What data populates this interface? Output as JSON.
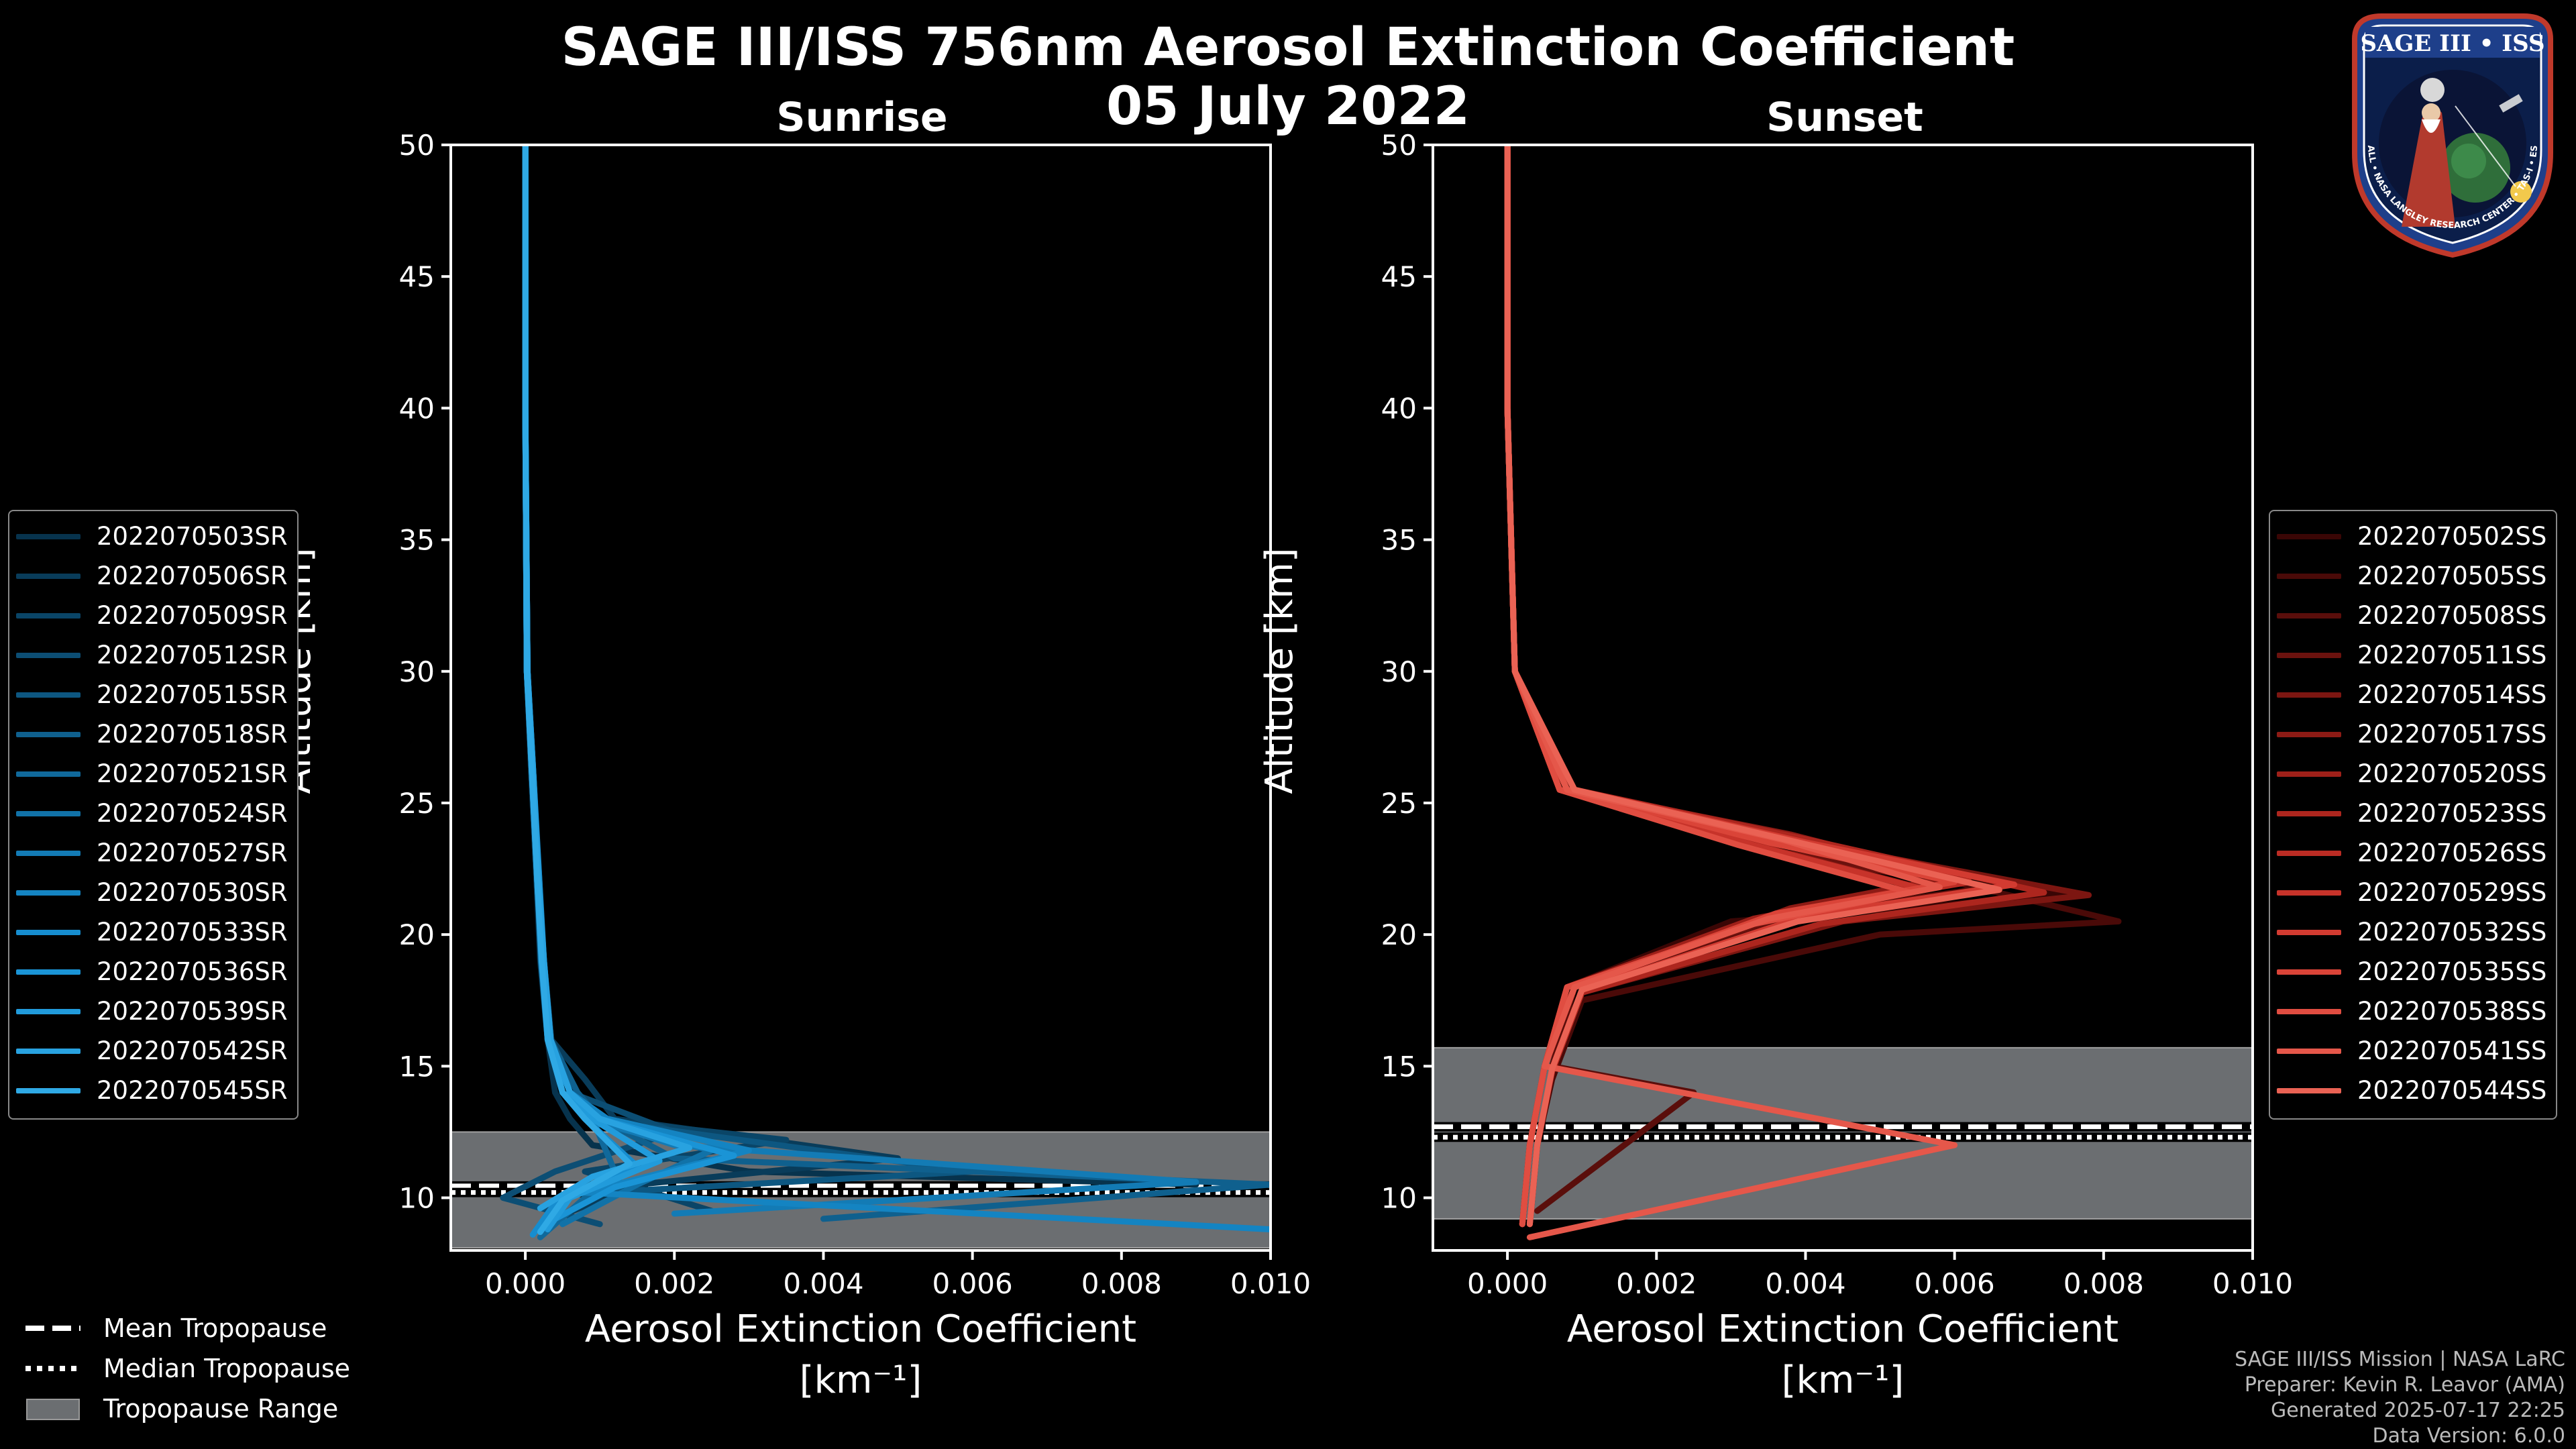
{
  "title_line1": "SAGE III/ISS 756nm Aerosol Extinction Coefficient",
  "title_line2": "05 July 2022",
  "logo_text": "SAGE III • ISS",
  "logo_ring_text": "BALL • NASA LANGLEY RESEARCH CENTER • TAS-I • ESA",
  "credits": {
    "line1": "SAGE III/ISS Mission | NASA LaRC",
    "line2": "Preparer: Kevin R. Leavor (AMA)",
    "line3": "Generated 2025-07-17 22:25",
    "line4": "Data Version: 6.0.0"
  },
  "trop_legend": {
    "mean": "Mean Tropopause",
    "median": "Median Tropopause",
    "range": "Tropopause Range"
  },
  "chart_data": [
    {
      "type": "line",
      "title": "Sunrise",
      "xlabel": "Aerosol Extinction Coefficient",
      "xlabel_units": "[km⁻¹]",
      "ylabel": "Altitude [km]",
      "xlim": [
        -0.001,
        0.01
      ],
      "ylim": [
        8,
        50
      ],
      "xticks": [
        0.0,
        0.002,
        0.004,
        0.006,
        0.008,
        0.01
      ],
      "xtick_labels": [
        "0.000",
        "0.002",
        "0.004",
        "0.006",
        "0.008",
        "0.010"
      ],
      "yticks": [
        10,
        15,
        20,
        25,
        30,
        35,
        40,
        45,
        50
      ],
      "tropopause": {
        "mean": 10.45,
        "median": 10.2,
        "range": [
          8.1,
          12.5
        ]
      },
      "series": [
        {
          "name": "2022070503SR",
          "color": "#07334d",
          "x": [
            0.0,
            0.0,
            2e-05,
            8e-05,
            0.00015,
            0.0002,
            0.0003,
            0.0004,
            0.0006,
            0.0009,
            0.003,
            0.009
          ],
          "y": [
            50,
            40,
            30,
            26,
            22,
            19,
            16,
            14,
            13,
            12,
            11,
            10.5
          ]
        },
        {
          "name": "2022070506SR",
          "color": "#093c5a",
          "x": [
            0.0,
            0.0,
            3e-05,
            0.0001,
            0.00018,
            0.00025,
            0.00035,
            0.0008,
            0.0012,
            0.005,
            0.0015,
            0.0002
          ],
          "y": [
            50,
            40,
            30,
            26,
            22,
            19,
            16,
            14.5,
            13,
            11.5,
            10.5,
            9
          ]
        },
        {
          "name": "2022070509SR",
          "color": "#0a4567",
          "x": [
            0.0,
            0.0,
            2e-05,
            9e-05,
            0.00016,
            0.00022,
            0.0003,
            0.0005,
            0.0009,
            0.0035,
            0.0008,
            0.0025
          ],
          "y": [
            50,
            40,
            30,
            26,
            22,
            19,
            16,
            14,
            13,
            12.2,
            11,
            9.5
          ]
        },
        {
          "name": "2022070512SR",
          "color": "#0c4e74",
          "x": [
            0.0,
            0.0,
            3e-05,
            0.0001,
            0.00019,
            0.00024,
            0.00033,
            0.0006,
            0.002,
            0.0004,
            -0.0003,
            0.001
          ],
          "y": [
            50,
            40,
            30,
            26,
            22,
            19,
            16,
            14,
            12.5,
            11,
            10,
            9
          ]
        },
        {
          "name": "2022070515SR",
          "color": "#0d5781",
          "x": [
            0.0,
            0.0,
            2e-05,
            0.0001,
            0.00017,
            0.00023,
            0.00031,
            0.0005,
            0.0008,
            0.006,
            0.001,
            0.0003
          ],
          "y": [
            50,
            40,
            30,
            26,
            22,
            19,
            16,
            14,
            13,
            11,
            10.2,
            9
          ]
        },
        {
          "name": "2022070518SR",
          "color": "#0f608e",
          "x": [
            0.0,
            0.0,
            3e-05,
            0.00011,
            0.00018,
            0.00025,
            0.00034,
            0.0007,
            0.001,
            0.002,
            0.01,
            0.004
          ],
          "y": [
            50,
            40,
            30,
            26,
            22,
            19,
            16,
            14,
            13,
            11.5,
            10.5,
            9.2
          ]
        },
        {
          "name": "2022070521SR",
          "color": "#10699b",
          "x": [
            0.0,
            0.0,
            2e-05,
            9e-05,
            0.00016,
            0.00021,
            0.0003,
            0.0005,
            0.0009,
            0.0012,
            0.0006,
            0.0002
          ],
          "y": [
            50,
            40,
            30,
            26,
            22,
            19,
            16,
            14,
            13,
            11,
            9.5,
            8.5
          ]
        },
        {
          "name": "2022070524SR",
          "color": "#1172a8",
          "x": [
            0.0,
            0.0,
            3e-05,
            0.0001,
            0.00018,
            0.00024,
            0.00033,
            0.0006,
            0.001,
            0.0025,
            0.0015,
            0.0005
          ],
          "y": [
            50,
            40,
            30,
            26,
            22,
            19,
            16,
            14,
            12.8,
            11.8,
            10.5,
            9
          ]
        },
        {
          "name": "2022070527SR",
          "color": "#137bb5",
          "x": [
            0.0,
            0.0,
            2e-05,
            0.0001,
            0.00017,
            0.00023,
            0.00032,
            0.0005,
            0.0009,
            0.002,
            0.009,
            0.002
          ],
          "y": [
            50,
            40,
            30,
            26,
            22,
            19,
            16,
            14,
            13,
            12,
            10.6,
            9.4
          ]
        },
        {
          "name": "2022070530SR",
          "color": "#1484c2",
          "x": [
            0.0,
            0.0,
            3e-05,
            0.00011,
            0.00019,
            0.00025,
            0.00034,
            0.0006,
            0.0011,
            0.003,
            0.0008,
            0.01
          ],
          "y": [
            50,
            40,
            30,
            26,
            22,
            19,
            16,
            14,
            13,
            11.8,
            10.2,
            8.8
          ]
        },
        {
          "name": "2022070533SR",
          "color": "#168dcf",
          "x": [
            0.0,
            0.0,
            2e-05,
            9e-05,
            0.00016,
            0.00022,
            0.0003,
            0.0005,
            0.0008,
            0.0015,
            0.0004,
            0.0001
          ],
          "y": [
            50,
            40,
            30,
            26,
            22,
            19,
            16,
            14,
            13,
            11.2,
            9.8,
            8.6
          ]
        },
        {
          "name": "2022070536SR",
          "color": "#1a94d6",
          "x": [
            0.0,
            0.0,
            3e-05,
            0.0001,
            0.00018,
            0.00024,
            0.00033,
            0.0006,
            0.001,
            0.0028,
            0.0012,
            0.0004
          ],
          "y": [
            50,
            40,
            30,
            26,
            22,
            19,
            16,
            14,
            13,
            11.6,
            10.4,
            9.2
          ]
        },
        {
          "name": "2022070539SR",
          "color": "#219bdb",
          "x": [
            0.0,
            0.0,
            2e-05,
            0.0001,
            0.00017,
            0.00023,
            0.00031,
            0.0005,
            0.0009,
            0.0018,
            0.0006,
            0.0003
          ],
          "y": [
            50,
            40,
            30,
            26,
            22,
            19,
            16,
            14,
            13,
            11.4,
            10,
            8.8
          ]
        },
        {
          "name": "2022070542SR",
          "color": "#28a2e0",
          "x": [
            0.0,
            0.0,
            3e-05,
            0.00011,
            0.00018,
            0.00025,
            0.00034,
            0.0006,
            0.001,
            0.0022,
            0.0009,
            0.0002
          ],
          "y": [
            50,
            40,
            30,
            26,
            22,
            19,
            16,
            14,
            13,
            11.9,
            10.8,
            9.6
          ]
        },
        {
          "name": "2022070545SR",
          "color": "#2fa9e5",
          "x": [
            0.0,
            0.0,
            2e-05,
            9e-05,
            0.00016,
            0.00022,
            0.0003,
            0.0005,
            0.0008,
            0.0014,
            0.0005,
            0.0002
          ],
          "y": [
            50,
            40,
            30,
            26,
            22,
            19,
            16,
            14,
            13,
            11.3,
            9.9,
            8.7
          ]
        }
      ]
    },
    {
      "type": "line",
      "title": "Sunset",
      "xlabel": "Aerosol Extinction Coefficient",
      "xlabel_units": "[km⁻¹]",
      "ylabel": "Altitude [km]",
      "xlim": [
        -0.001,
        0.01
      ],
      "ylim": [
        8,
        50
      ],
      "xticks": [
        0.0,
        0.002,
        0.004,
        0.006,
        0.008,
        0.01
      ],
      "xtick_labels": [
        "0.000",
        "0.002",
        "0.004",
        "0.006",
        "0.008",
        "0.010"
      ],
      "yticks": [
        10,
        15,
        20,
        25,
        30,
        35,
        40,
        45,
        50
      ],
      "tropopause": {
        "mean": 12.7,
        "median": 12.3,
        "range": [
          9.2,
          15.7
        ]
      },
      "series": [
        {
          "name": "2022070502SS",
          "color": "#3a0605",
          "x": [
            0.0,
            0.0,
            0.0001,
            0.0008,
            0.004,
            0.0075,
            0.003,
            0.0008,
            0.0005,
            0.0003,
            0.0002
          ],
          "y": [
            50,
            40,
            30,
            25.5,
            23.5,
            21.5,
            20.5,
            18,
            15,
            12,
            9
          ]
        },
        {
          "name": "2022070505SS",
          "color": "#4a0a08",
          "x": [
            0.0,
            0.0,
            0.0001,
            0.0009,
            0.0045,
            0.0082,
            0.005,
            0.001,
            0.0006,
            0.0004,
            0.0003
          ],
          "y": [
            50,
            40,
            30,
            25.5,
            23,
            20.5,
            20,
            17.5,
            14.5,
            12,
            9
          ]
        },
        {
          "name": "2022070508SS",
          "color": "#5a0e0b",
          "x": [
            0.0,
            0.0,
            0.0001,
            0.0008,
            0.0035,
            0.0065,
            0.004,
            0.0009,
            0.0006,
            0.0025,
            0.0004
          ],
          "y": [
            50,
            40,
            30,
            25.5,
            23.5,
            21.8,
            20.8,
            18,
            15,
            14,
            9.5
          ]
        },
        {
          "name": "2022070511SS",
          "color": "#6b120e",
          "x": [
            0.0,
            0.0,
            0.0001,
            0.0007,
            0.003,
            0.0058,
            0.0035,
            0.0008,
            0.0005,
            0.0003,
            0.0002
          ],
          "y": [
            50,
            40,
            30,
            25.5,
            23.5,
            22,
            20.5,
            18,
            15,
            12,
            9
          ]
        },
        {
          "name": "2022070514SS",
          "color": "#7c1611",
          "x": [
            0.0,
            0.0,
            0.0001,
            0.0009,
            0.004,
            0.0078,
            0.0045,
            0.001,
            0.0006,
            0.0004,
            0.0003
          ],
          "y": [
            50,
            40,
            30,
            25.5,
            23.5,
            21.5,
            20.5,
            17.8,
            14.8,
            12,
            9
          ]
        },
        {
          "name": "2022070517SS",
          "color": "#8d1b15",
          "x": [
            0.0,
            0.0,
            0.0001,
            0.0008,
            0.0038,
            0.006,
            0.0038,
            0.0009,
            0.0005,
            0.0003,
            0.0002
          ],
          "y": [
            50,
            40,
            30,
            25.5,
            23.8,
            22.2,
            21,
            18,
            15,
            12,
            9
          ]
        },
        {
          "name": "2022070520SS",
          "color": "#9e2019",
          "x": [
            0.0,
            0.0,
            0.0001,
            0.0007,
            0.0032,
            0.0055,
            0.0033,
            0.0008,
            0.0005,
            0.0003,
            0.0002
          ],
          "y": [
            50,
            40,
            30,
            25.5,
            23.5,
            21.8,
            20.6,
            18,
            15,
            12,
            9
          ]
        },
        {
          "name": "2022070523SS",
          "color": "#ad261e",
          "x": [
            0.0,
            0.0,
            0.0001,
            0.0009,
            0.0042,
            0.0072,
            0.0042,
            0.001,
            0.0006,
            0.0004,
            0.0003
          ],
          "y": [
            50,
            40,
            30,
            25.5,
            23.5,
            21.6,
            20.4,
            17.8,
            14.8,
            12,
            9
          ]
        },
        {
          "name": "2022070526SS",
          "color": "#bb2c24",
          "x": [
            0.0,
            0.0,
            0.0001,
            0.0008,
            0.0036,
            0.0062,
            0.0037,
            0.0009,
            0.0005,
            0.0003,
            0.0002
          ],
          "y": [
            50,
            40,
            30,
            25.5,
            23.6,
            22,
            20.8,
            18,
            15,
            12,
            9
          ]
        },
        {
          "name": "2022070529SS",
          "color": "#c7332a",
          "x": [
            0.0,
            0.0,
            0.0001,
            0.0007,
            0.0033,
            0.0056,
            0.0034,
            0.0008,
            0.0005,
            0.0003,
            0.0002
          ],
          "y": [
            50,
            40,
            30,
            25.5,
            23.4,
            21.7,
            20.5,
            18,
            15,
            12,
            9
          ]
        },
        {
          "name": "2022070532SS",
          "color": "#d23b31",
          "x": [
            0.0,
            0.0,
            0.0001,
            0.0009,
            0.004,
            0.0068,
            0.004,
            0.001,
            0.0006,
            0.0004,
            0.0003
          ],
          "y": [
            50,
            40,
            30,
            25.5,
            23.5,
            21.9,
            20.7,
            17.9,
            14.9,
            12,
            9
          ]
        },
        {
          "name": "2022070535SS",
          "color": "#da4438",
          "x": [
            0.0,
            0.0,
            0.0001,
            0.0008,
            0.0035,
            0.006,
            0.0036,
            0.0009,
            0.0005,
            0.0003,
            0.0002
          ],
          "y": [
            50,
            40,
            30,
            25.5,
            23.5,
            22,
            20.8,
            18,
            15,
            12,
            9
          ]
        },
        {
          "name": "2022070538SS",
          "color": "#e04d41",
          "x": [
            0.0,
            0.0,
            0.0001,
            0.0007,
            0.0031,
            0.0054,
            0.0033,
            0.0008,
            0.0005,
            0.0003,
            0.0002
          ],
          "y": [
            50,
            40,
            30,
            25.5,
            23.4,
            21.6,
            20.4,
            18,
            15,
            12,
            9
          ]
        },
        {
          "name": "2022070541SS",
          "color": "#e5574a",
          "x": [
            0.0,
            0.0,
            0.0001,
            0.0008,
            0.0037,
            0.0058,
            0.0035,
            0.0009,
            0.0005,
            0.006,
            0.0003
          ],
          "y": [
            50,
            40,
            30,
            25.5,
            23.6,
            21.8,
            20.6,
            18,
            15,
            12,
            8.5
          ]
        },
        {
          "name": "2022070544SS",
          "color": "#ea6254",
          "x": [
            0.0,
            0.0,
            0.0001,
            0.0009,
            0.0039,
            0.0066,
            0.0039,
            0.001,
            0.0006,
            0.0004,
            0.0003
          ],
          "y": [
            50,
            40,
            30,
            25.5,
            23.5,
            21.7,
            20.5,
            17.9,
            14.9,
            12,
            9
          ]
        }
      ]
    }
  ]
}
